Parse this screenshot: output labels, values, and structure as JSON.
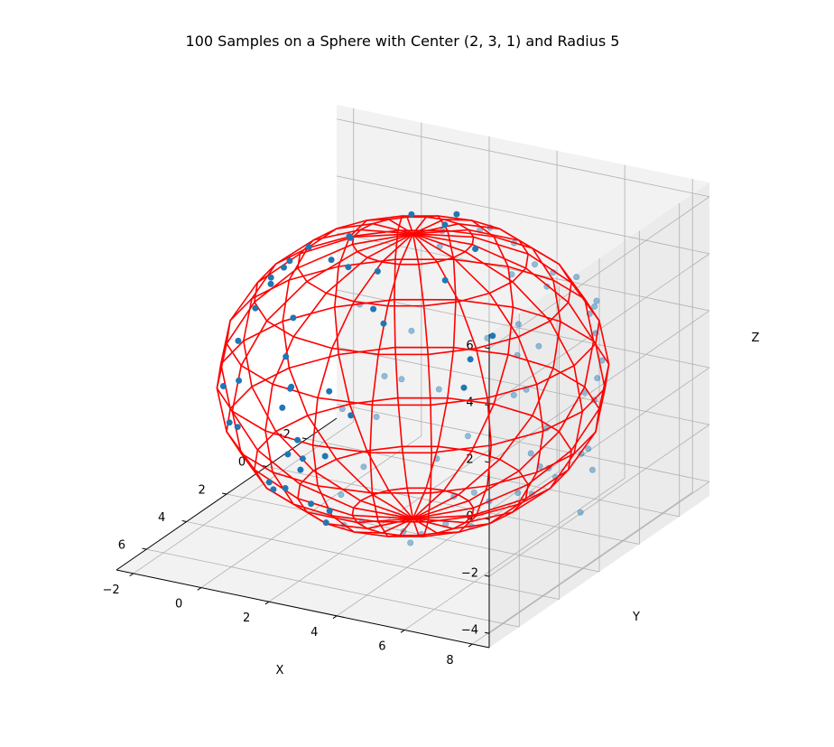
{
  "chart_data": {
    "type": "scatter",
    "projection": "3d",
    "title": "100 Samples on a Sphere with Center (2, 3, 1) and Radius 5",
    "xlabel": "X",
    "ylabel": "Y",
    "zlabel": "Z",
    "xlim": [
      -3.5,
      7.5
    ],
    "ylim": [
      -2.5,
      8.5
    ],
    "zlim": [
      -4.5,
      6.5
    ],
    "x_ticks": [
      -2,
      0,
      2,
      4,
      6
    ],
    "y_ticks": [
      -2,
      0,
      2,
      4,
      6,
      8
    ],
    "z_ticks": [
      -4,
      -2,
      0,
      2,
      4,
      6
    ],
    "x_tick_labels": [
      "−2",
      "0",
      "2",
      "4",
      "6"
    ],
    "y_tick_labels": [
      "−2",
      "0",
      "2",
      "4",
      "6",
      "8"
    ],
    "z_tick_labels": [
      "−4",
      "−2",
      "0",
      "2",
      "4",
      "6"
    ],
    "grid": true,
    "sphere": {
      "center": [
        2,
        3,
        1
      ],
      "radius": 5,
      "wireframe_color": "#ff0000",
      "n_meridians": 20,
      "n_parallels": 10
    },
    "series": [
      {
        "n_points": 100,
        "color": "#1f77b4",
        "points": [
          [
            2.23,
            3.93,
            5.9
          ],
          [
            3.97,
            -0.03,
            4.44
          ],
          [
            1.77,
            5.78,
            5.15
          ],
          [
            0.62,
            0.35,
            4.53
          ],
          [
            2.71,
            -0.39,
            4.32
          ],
          [
            -0.82,
            3.61,
            5.0
          ],
          [
            3.89,
            2.21,
            5.55
          ],
          [
            3.76,
            7.12,
            3.61
          ],
          [
            1.39,
            -1.55,
            3.04
          ],
          [
            4.28,
            -0.81,
            2.4
          ],
          [
            0.31,
            7.58,
            1.87
          ],
          [
            5.33,
            6.59,
            1.4
          ],
          [
            -2.48,
            3.95,
            2.99
          ],
          [
            6.64,
            2.12,
            2.59
          ],
          [
            0.92,
            -0.71,
            4.09
          ],
          [
            5.91,
            4.47,
            3.26
          ],
          [
            -2.4,
            2.24,
            3.15
          ],
          [
            0.53,
            2.09,
            5.74
          ],
          [
            3.82,
            6.27,
            4.03
          ],
          [
            -1.71,
            1.75,
            4.21
          ],
          [
            3.62,
            1.55,
            5.51
          ],
          [
            -0.89,
            6.65,
            2.95
          ],
          [
            2.38,
            1.35,
            5.69
          ],
          [
            1.41,
            3.52,
            5.94
          ],
          [
            -1.8,
            4.89,
            3.27
          ],
          [
            6.08,
            1.66,
            3.33
          ],
          [
            4.95,
            4.7,
            4.44
          ],
          [
            -0.42,
            6.99,
            3.46
          ],
          [
            -2.0,
            3.62,
            3.89
          ],
          [
            5.85,
            4.94,
            3.24
          ],
          [
            -1.09,
            6.0,
            3.73
          ],
          [
            4.79,
            3.08,
            4.89
          ],
          [
            2.94,
            6.67,
            4.19
          ],
          [
            0.38,
            4.02,
            5.6
          ],
          [
            -0.91,
            2.57,
            5.17
          ],
          [
            4.5,
            -1.12,
            0.84
          ],
          [
            0.96,
            7.33,
            -3.21
          ],
          [
            4.91,
            4.97,
            -2.65
          ],
          [
            -1.39,
            6.17,
            -2.4
          ],
          [
            1.92,
            -0.3,
            -2.75
          ],
          [
            3.48,
            -1.3,
            -1.13
          ],
          [
            5.71,
            3.16,
            -2.39
          ],
          [
            -2.93,
            2.44,
            -0.11
          ],
          [
            -2.81,
            1.11,
            1.57
          ],
          [
            5.97,
            3.84,
            -1.98
          ],
          [
            0.65,
            7.5,
            -1.83
          ],
          [
            2.09,
            4.02,
            -3.89
          ],
          [
            4.32,
            0.13,
            -2.31
          ],
          [
            5.31,
            -0.46,
            0.12
          ],
          [
            4.07,
            7.32,
            -1.02
          ],
          [
            -0.97,
            0.38,
            0.76
          ],
          [
            3.69,
            1.54,
            -3.27
          ],
          [
            -0.34,
            5.62,
            -2.71
          ],
          [
            5.26,
            1.16,
            -1.81
          ],
          [
            -0.35,
            -0.22,
            -2.31
          ],
          [
            1.7,
            -1.03,
            -1.25
          ],
          [
            6.18,
            2.15,
            -0.47
          ],
          [
            2.41,
            7.45,
            -1.24
          ],
          [
            -1.79,
            6.2,
            -0.11
          ],
          [
            -2.09,
            3.93,
            -1.22
          ],
          [
            6.24,
            4.43,
            1.98
          ],
          [
            1.28,
            7.63,
            1.23
          ],
          [
            -1.68,
            2.33,
            -1.35
          ],
          [
            6.38,
            2.58,
            -1.46
          ],
          [
            4.02,
            7.17,
            2.35
          ],
          [
            5.9,
            6.01,
            0.74
          ],
          [
            2.39,
            -1.42,
            2.48
          ],
          [
            6.8,
            2.43,
            0.94
          ],
          [
            0.27,
            5.49,
            -3.36
          ],
          [
            -1.32,
            4.52,
            -2.94
          ],
          [
            3.69,
            -0.12,
            -2.93
          ],
          [
            0.06,
            3.66,
            -3.86
          ],
          [
            3.01,
            3.32,
            -3.88
          ],
          [
            4.8,
            4.58,
            -3.1
          ],
          [
            3.99,
            1.61,
            -3.52
          ],
          [
            -0.84,
            5.07,
            -3.03
          ],
          [
            -2.61,
            3.99,
            0.07
          ],
          [
            1.37,
            -1.01,
            3.75
          ],
          [
            5.17,
            5.64,
            2.73
          ],
          [
            -0.18,
            7.1,
            2.47
          ],
          [
            0.87,
            -0.26,
            -3.16
          ],
          [
            3.06,
            5.35,
            -3.18
          ],
          [
            -2.39,
            4.36,
            2.36
          ],
          [
            6.66,
            4.3,
            0.4
          ],
          [
            0.52,
            7.48,
            0.56
          ],
          [
            3.19,
            7.64,
            0.9
          ],
          [
            5.63,
            6.35,
            -0.63
          ],
          [
            -2.49,
            2.04,
            -0.82
          ],
          [
            -0.06,
            -0.69,
            -1.44
          ],
          [
            5.86,
            1.59,
            -0.22
          ],
          [
            6.52,
            3.55,
            -0.83
          ],
          [
            2.54,
            -1.82,
            -0.09
          ],
          [
            -1.47,
            -0.22,
            0.88
          ],
          [
            0.41,
            -1.47,
            1.17
          ],
          [
            -1.11,
            0.12,
            2.46
          ],
          [
            6.81,
            3.76,
            2.37
          ],
          [
            1.73,
            7.81,
            -0.66
          ],
          [
            -2.46,
            5.58,
            1.67
          ],
          [
            4.95,
            6.99,
            -0.97
          ],
          [
            1.12,
            -1.11,
            -0.82
          ]
        ]
      }
    ]
  }
}
